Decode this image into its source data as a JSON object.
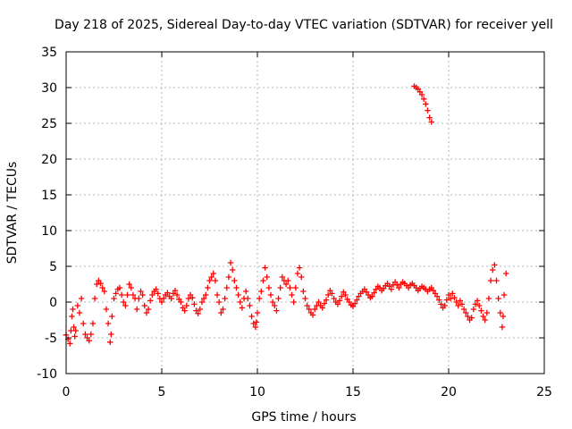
{
  "chart_data": {
    "type": "scatter",
    "title": "Day 218 of 2025, Sidereal Day-to-day VTEC variation (SDTVAR) for receiver yell",
    "xlabel": "GPS time / hours",
    "ylabel": "SDTVAR / TECUs",
    "xlim": [
      0,
      25
    ],
    "ylim": [
      -10,
      35
    ],
    "xticks": [
      0,
      5,
      10,
      15,
      20,
      25
    ],
    "yticks": [
      -10,
      -5,
      0,
      5,
      10,
      15,
      20,
      25,
      30,
      35
    ],
    "xtick_labels": [
      "0",
      "5",
      "10",
      "15",
      "20",
      "25"
    ],
    "ytick_labels": [
      "-10",
      "-5",
      "0",
      "5",
      "10",
      "15",
      "20",
      "25",
      "30",
      "35"
    ],
    "grid": true,
    "marker": "+",
    "colors": {
      "series": "#ff0000",
      "grid": "#a0a0a0",
      "axis": "#000000"
    },
    "series": [
      {
        "name": "SDTVAR",
        "points": [
          [
            0.0,
            -4.6
          ],
          [
            0.1,
            -5.2
          ],
          [
            0.2,
            -5.8
          ],
          [
            0.25,
            -4.0
          ],
          [
            0.3,
            -2.0
          ],
          [
            0.35,
            -1.0
          ],
          [
            0.4,
            -3.5
          ],
          [
            0.45,
            -4.8
          ],
          [
            0.5,
            -4.0
          ],
          [
            0.6,
            -0.5
          ],
          [
            0.7,
            -1.5
          ],
          [
            0.8,
            0.5
          ],
          [
            0.9,
            -3.0
          ],
          [
            1.0,
            -4.5
          ],
          [
            1.1,
            -5.0
          ],
          [
            1.2,
            -5.4
          ],
          [
            1.3,
            -4.5
          ],
          [
            1.4,
            -3.0
          ],
          [
            1.5,
            0.5
          ],
          [
            1.6,
            2.5
          ],
          [
            1.7,
            3.0
          ],
          [
            1.8,
            2.6
          ],
          [
            1.9,
            2.0
          ],
          [
            2.0,
            1.5
          ],
          [
            2.1,
            -1.0
          ],
          [
            2.2,
            -3.0
          ],
          [
            2.3,
            -5.6
          ],
          [
            2.35,
            -4.5
          ],
          [
            2.4,
            -2.0
          ],
          [
            2.5,
            0.5
          ],
          [
            2.6,
            1.2
          ],
          [
            2.7,
            1.8
          ],
          [
            2.8,
            2.0
          ],
          [
            2.9,
            1.0
          ],
          [
            3.0,
            0.0
          ],
          [
            3.1,
            -0.5
          ],
          [
            3.2,
            1.0
          ],
          [
            3.3,
            2.5
          ],
          [
            3.4,
            2.0
          ],
          [
            3.5,
            1.0
          ],
          [
            3.6,
            0.5
          ],
          [
            3.7,
            -1.0
          ],
          [
            3.8,
            0.5
          ],
          [
            3.9,
            1.5
          ],
          [
            4.0,
            1.0
          ],
          [
            4.1,
            -0.5
          ],
          [
            4.2,
            -1.5
          ],
          [
            4.3,
            -1.0
          ],
          [
            4.4,
            0.2
          ],
          [
            4.5,
            1.0
          ],
          [
            4.6,
            1.5
          ],
          [
            4.7,
            1.8
          ],
          [
            4.8,
            1.2
          ],
          [
            4.9,
            0.5
          ],
          [
            5.0,
            0.0
          ],
          [
            5.1,
            0.5
          ],
          [
            5.2,
            1.0
          ],
          [
            5.3,
            1.3
          ],
          [
            5.4,
            0.8
          ],
          [
            5.5,
            0.5
          ],
          [
            5.6,
            1.2
          ],
          [
            5.7,
            1.6
          ],
          [
            5.8,
            1.0
          ],
          [
            5.9,
            0.4
          ],
          [
            6.0,
            0.0
          ],
          [
            6.1,
            -0.8
          ],
          [
            6.2,
            -1.2
          ],
          [
            6.3,
            -0.5
          ],
          [
            6.4,
            0.5
          ],
          [
            6.5,
            1.0
          ],
          [
            6.6,
            0.6
          ],
          [
            6.7,
            -0.3
          ],
          [
            6.8,
            -1.2
          ],
          [
            6.9,
            -1.6
          ],
          [
            7.0,
            -1.0
          ],
          [
            7.1,
            0.0
          ],
          [
            7.2,
            0.5
          ],
          [
            7.3,
            1.0
          ],
          [
            7.4,
            2.0
          ],
          [
            7.5,
            3.0
          ],
          [
            7.6,
            3.5
          ],
          [
            7.7,
            4.0
          ],
          [
            7.8,
            3.0
          ],
          [
            7.9,
            1.0
          ],
          [
            8.0,
            0.0
          ],
          [
            8.1,
            -1.5
          ],
          [
            8.2,
            -1.0
          ],
          [
            8.3,
            0.5
          ],
          [
            8.4,
            2.0
          ],
          [
            8.5,
            3.5
          ],
          [
            8.6,
            5.5
          ],
          [
            8.7,
            4.5
          ],
          [
            8.8,
            3.0
          ],
          [
            8.9,
            2.0
          ],
          [
            9.0,
            1.0
          ],
          [
            9.1,
            0.0
          ],
          [
            9.2,
            -0.8
          ],
          [
            9.3,
            0.5
          ],
          [
            9.4,
            1.5
          ],
          [
            9.5,
            0.5
          ],
          [
            9.6,
            -0.5
          ],
          [
            9.7,
            -2.0
          ],
          [
            9.8,
            -3.0
          ],
          [
            9.9,
            -3.5
          ],
          [
            9.95,
            -2.8
          ],
          [
            10.0,
            -1.5
          ],
          [
            10.1,
            0.5
          ],
          [
            10.2,
            1.5
          ],
          [
            10.3,
            3.0
          ],
          [
            10.4,
            4.8
          ],
          [
            10.5,
            3.5
          ],
          [
            10.6,
            2.0
          ],
          [
            10.7,
            1.0
          ],
          [
            10.8,
            0.0
          ],
          [
            10.9,
            -0.5
          ],
          [
            11.0,
            -1.2
          ],
          [
            11.1,
            0.5
          ],
          [
            11.2,
            2.0
          ],
          [
            11.3,
            3.5
          ],
          [
            11.4,
            3.0
          ],
          [
            11.5,
            2.5
          ],
          [
            11.6,
            3.0
          ],
          [
            11.7,
            2.0
          ],
          [
            11.8,
            1.0
          ],
          [
            11.9,
            0.0
          ],
          [
            12.0,
            2.0
          ],
          [
            12.1,
            4.0
          ],
          [
            12.2,
            4.8
          ],
          [
            12.3,
            3.5
          ],
          [
            12.4,
            1.5
          ],
          [
            12.5,
            0.5
          ],
          [
            12.6,
            -0.5
          ],
          [
            12.7,
            -1.0
          ],
          [
            12.8,
            -1.5
          ],
          [
            12.9,
            -1.8
          ],
          [
            13.0,
            -1.0
          ],
          [
            13.1,
            -0.5
          ],
          [
            13.2,
            0.0
          ],
          [
            13.3,
            -0.5
          ],
          [
            13.4,
            -0.8
          ],
          [
            13.5,
            -0.2
          ],
          [
            13.6,
            0.3
          ],
          [
            13.7,
            1.0
          ],
          [
            13.8,
            1.6
          ],
          [
            13.9,
            1.2
          ],
          [
            14.0,
            0.5
          ],
          [
            14.1,
            0.0
          ],
          [
            14.2,
            -0.3
          ],
          [
            14.3,
            0.2
          ],
          [
            14.4,
            0.8
          ],
          [
            14.5,
            1.4
          ],
          [
            14.6,
            1.0
          ],
          [
            14.7,
            0.4
          ],
          [
            14.8,
            0.0
          ],
          [
            14.9,
            -0.4
          ],
          [
            15.0,
            -0.6
          ],
          [
            15.1,
            -0.2
          ],
          [
            15.2,
            0.3
          ],
          [
            15.3,
            0.8
          ],
          [
            15.4,
            1.2
          ],
          [
            15.5,
            1.5
          ],
          [
            15.6,
            1.8
          ],
          [
            15.7,
            1.4
          ],
          [
            15.8,
            1.0
          ],
          [
            15.9,
            0.6
          ],
          [
            16.0,
            0.8
          ],
          [
            16.1,
            1.3
          ],
          [
            16.2,
            1.8
          ],
          [
            16.3,
            2.2
          ],
          [
            16.4,
            2.0
          ],
          [
            16.5,
            1.6
          ],
          [
            16.6,
            1.9
          ],
          [
            16.7,
            2.3
          ],
          [
            16.8,
            2.6
          ],
          [
            16.9,
            2.2
          ],
          [
            17.0,
            1.8
          ],
          [
            17.1,
            2.4
          ],
          [
            17.2,
            2.8
          ],
          [
            17.3,
            2.4
          ],
          [
            17.4,
            2.0
          ],
          [
            17.5,
            2.5
          ],
          [
            17.6,
            2.8
          ],
          [
            17.7,
            2.6
          ],
          [
            17.8,
            2.3
          ],
          [
            17.9,
            2.0
          ],
          [
            18.0,
            2.4
          ],
          [
            18.1,
            2.6
          ],
          [
            18.2,
            2.3
          ],
          [
            18.3,
            2.0
          ],
          [
            18.4,
            1.6
          ],
          [
            18.5,
            1.9
          ],
          [
            18.6,
            2.2
          ],
          [
            18.7,
            2.0
          ],
          [
            18.8,
            1.8
          ],
          [
            18.9,
            1.5
          ],
          [
            19.0,
            1.8
          ],
          [
            19.1,
            2.0
          ],
          [
            19.2,
            1.6
          ],
          [
            19.3,
            1.2
          ],
          [
            19.4,
            0.8
          ],
          [
            19.5,
            0.3
          ],
          [
            19.6,
            -0.3
          ],
          [
            19.7,
            -0.8
          ],
          [
            19.8,
            -0.5
          ],
          [
            19.9,
            0.3
          ],
          [
            20.0,
            1.0
          ],
          [
            20.1,
            0.5
          ],
          [
            20.2,
            1.2
          ],
          [
            20.3,
            0.6
          ],
          [
            20.4,
            0.0
          ],
          [
            20.5,
            -0.5
          ],
          [
            20.6,
            0.2
          ],
          [
            20.7,
            -0.3
          ],
          [
            20.8,
            -1.0
          ],
          [
            20.9,
            -1.5
          ],
          [
            21.0,
            -2.0
          ],
          [
            21.1,
            -2.5
          ],
          [
            21.2,
            -2.2
          ],
          [
            21.3,
            -1.0
          ],
          [
            21.4,
            -0.3
          ],
          [
            21.5,
            0.2
          ],
          [
            21.6,
            -0.5
          ],
          [
            21.7,
            -1.2
          ],
          [
            21.8,
            -2.0
          ],
          [
            21.9,
            -2.5
          ],
          [
            22.0,
            -1.5
          ],
          [
            22.1,
            0.5
          ],
          [
            22.2,
            3.0
          ],
          [
            22.3,
            4.5
          ],
          [
            22.4,
            5.2
          ],
          [
            22.5,
            3.0
          ],
          [
            22.6,
            0.5
          ],
          [
            22.7,
            -1.5
          ],
          [
            22.8,
            -3.5
          ],
          [
            22.85,
            -2.0
          ],
          [
            22.9,
            1.0
          ],
          [
            23.0,
            4.0
          ],
          [
            18.2,
            30.2
          ],
          [
            18.3,
            30.0
          ],
          [
            18.4,
            29.8
          ],
          [
            18.5,
            29.4
          ],
          [
            18.6,
            29.0
          ],
          [
            18.7,
            28.4
          ],
          [
            18.8,
            27.7
          ],
          [
            18.9,
            26.8
          ],
          [
            19.0,
            25.8
          ],
          [
            19.1,
            25.2
          ]
        ]
      }
    ]
  }
}
